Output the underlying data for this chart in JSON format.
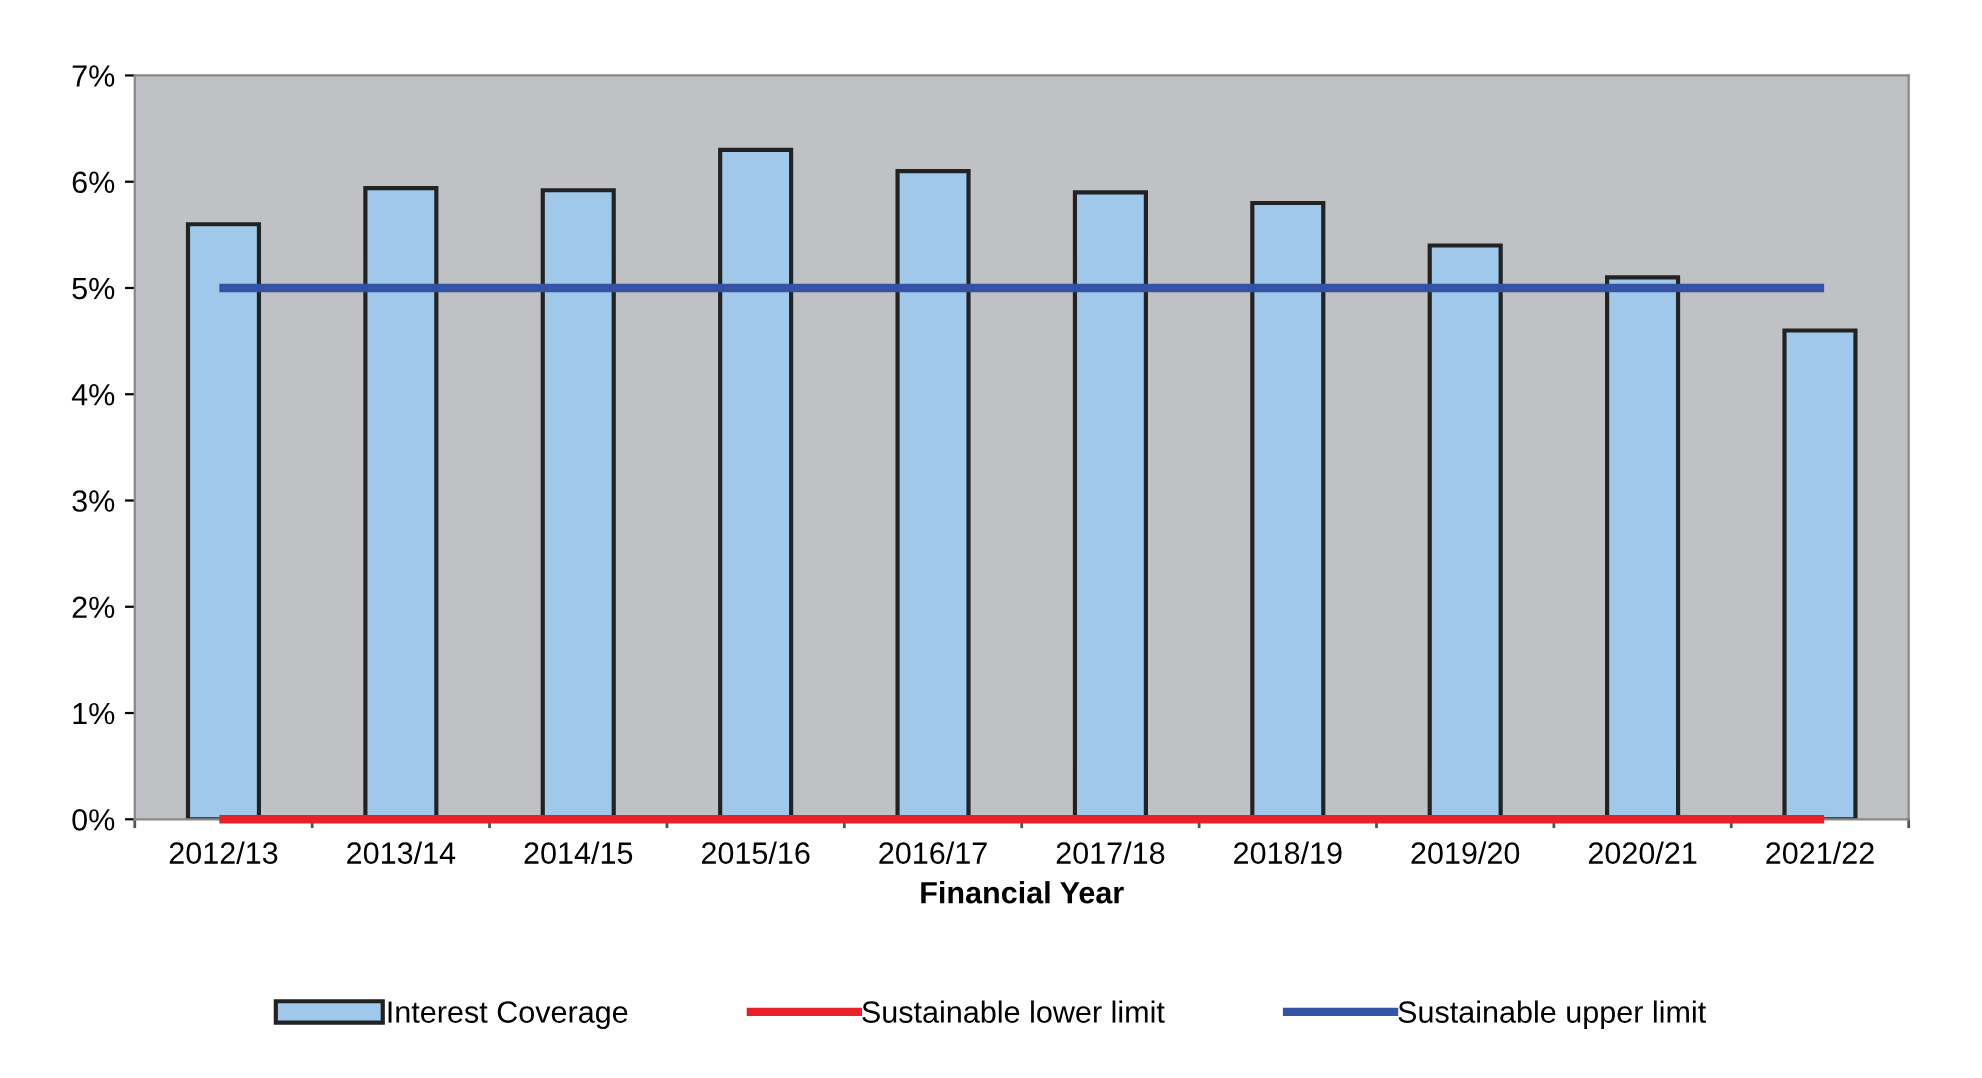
{
  "chart_data": {
    "type": "bar",
    "xlabel": "Financial Year",
    "categories": [
      "2012/13",
      "2013/14",
      "2014/15",
      "2015/16",
      "2016/17",
      "2017/18",
      "2018/19",
      "2019/20",
      "2020/21",
      "2021/22"
    ],
    "series": [
      {
        "name": "Interest Coverage",
        "color": "#9fc8ea",
        "values": [
          5.6,
          5.94,
          5.92,
          6.3,
          6.1,
          5.9,
          5.8,
          5.4,
          5.1,
          4.6
        ]
      },
      {
        "name": "Sustainable lower limit",
        "type": "line",
        "color": "#e8202a",
        "values": [
          0,
          0,
          0,
          0,
          0,
          0,
          0,
          0,
          0,
          0
        ]
      },
      {
        "name": "Sustainable upper limit",
        "type": "line",
        "color": "#3553a4",
        "values": [
          5,
          5,
          5,
          5,
          5,
          5,
          5,
          5,
          5,
          5
        ]
      }
    ],
    "ylim": [
      0,
      7
    ],
    "yticks": [
      {
        "value": 0,
        "label": "0%"
      },
      {
        "value": 1,
        "label": "1%"
      },
      {
        "value": 2,
        "label": "2%"
      },
      {
        "value": 3,
        "label": "3%"
      },
      {
        "value": 4,
        "label": "4%"
      },
      {
        "value": 5,
        "label": "5%"
      },
      {
        "value": 6,
        "label": "6%"
      },
      {
        "value": 7,
        "label": "7%"
      }
    ],
    "grid": false,
    "legend": "bottom"
  }
}
